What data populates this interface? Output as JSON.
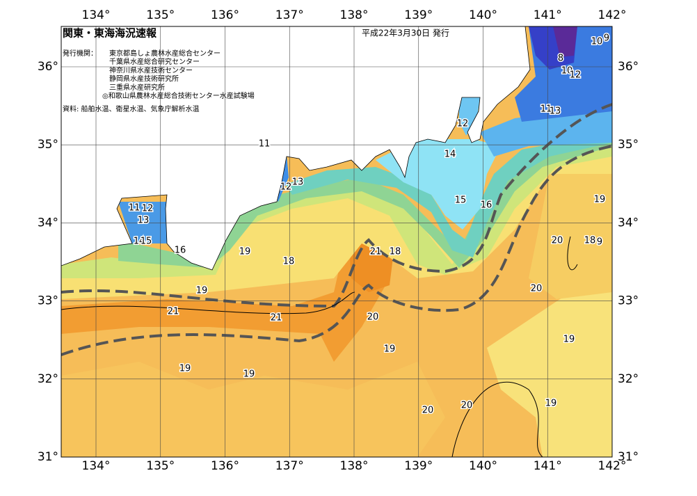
{
  "header": {
    "title": "関東・東海海況速報",
    "date": "平成22年3月30日 発行",
    "issuer_label": "発行機関：",
    "issuers": [
      "東京都島しょ農林水産総合センター",
      "千葉県水産総合研究センター",
      "神奈川県水産技術センター",
      "静岡県水産技術研究所",
      "三重県水産研究所",
      "◎和歌山県農林水産総合技術センター水産試験場"
    ],
    "source": "資料: 船舶水温、衛星水温、気象庁解析水温"
  },
  "map": {
    "lon_ticks": [
      {
        "value": 134,
        "label": "134°"
      },
      {
        "value": 135,
        "label": "135°"
      },
      {
        "value": 136,
        "label": "136°"
      },
      {
        "value": 137,
        "label": "137°"
      },
      {
        "value": 138,
        "label": "138°"
      },
      {
        "value": 139,
        "label": "139°"
      },
      {
        "value": 140,
        "label": "140°"
      },
      {
        "value": 141,
        "label": "141°"
      },
      {
        "value": 142,
        "label": "142°"
      }
    ],
    "lat_ticks": [
      {
        "value": 31,
        "label": "31°"
      },
      {
        "value": 32,
        "label": "32°"
      },
      {
        "value": 33,
        "label": "33°"
      },
      {
        "value": 34,
        "label": "34°"
      },
      {
        "value": 35,
        "label": "35°"
      },
      {
        "value": 36,
        "label": "36°"
      }
    ],
    "contour_labels": [
      "10",
      "9",
      "8",
      "10",
      "12",
      "11",
      "13",
      "12",
      "11",
      "14",
      "12",
      "13",
      "15",
      "16",
      "19",
      "11",
      "12",
      "13",
      "14",
      "15",
      "16",
      "18",
      "9",
      "20",
      "21",
      "18",
      "19",
      "18",
      "19",
      "20",
      "21",
      "21",
      "20",
      "19",
      "19",
      "19",
      "19",
      "20",
      "20",
      "19"
    ]
  }
}
